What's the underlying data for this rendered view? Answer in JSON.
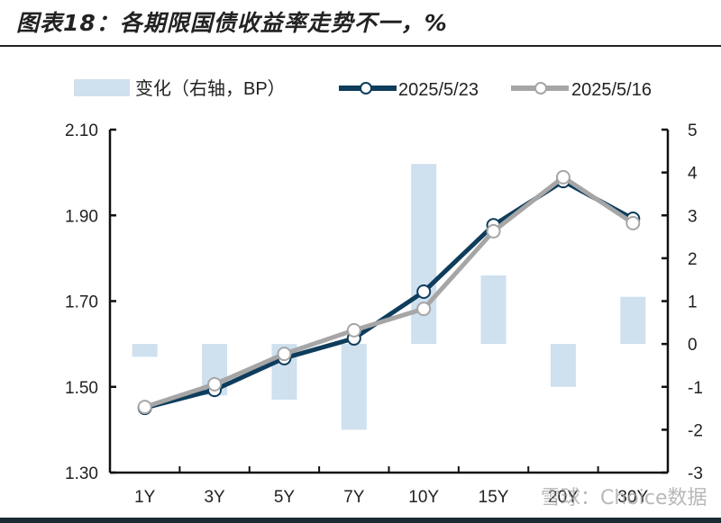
{
  "title": "图表18：各期限国债收益率走势不一，%",
  "legend": [
    {
      "label": "变化（右轴，BP）",
      "type": "bar",
      "color": "#cfe0ef"
    },
    {
      "label": "2025/5/23",
      "type": "line",
      "color": "#0f3d5c"
    },
    {
      "label": "2025/5/16",
      "type": "line",
      "color": "#a6a6a6"
    }
  ],
  "watermark": "雪球：Choice数据",
  "chart_data": {
    "type": "bar+line",
    "title": "图表18：各期限国债收益率走势不一，%",
    "categories": [
      "1Y",
      "3Y",
      "5Y",
      "7Y",
      "10Y",
      "15Y",
      "20Y",
      "30Y"
    ],
    "series": [
      {
        "name": "变化（右轴，BP）",
        "type": "bar",
        "axis": "right",
        "values": [
          -0.3,
          -1.2,
          -1.3,
          -2.0,
          4.2,
          1.6,
          -1.0,
          1.1
        ]
      },
      {
        "name": "2025/5/23",
        "type": "line",
        "axis": "left",
        "values": [
          1.451,
          1.493,
          1.567,
          1.613,
          1.722,
          1.877,
          1.98,
          1.892
        ]
      },
      {
        "name": "2025/5/16",
        "type": "line",
        "axis": "left",
        "values": [
          1.453,
          1.506,
          1.577,
          1.632,
          1.682,
          1.863,
          1.989,
          1.882
        ]
      }
    ],
    "left_axis": {
      "ylim": [
        1.3,
        2.1
      ],
      "ticks": [
        "2.10",
        "1.90",
        "1.70",
        "1.50",
        "1.30"
      ]
    },
    "right_axis": {
      "ylim": [
        -3,
        5
      ],
      "ticks": [
        "5",
        "4",
        "3",
        "2",
        "1",
        "0",
        "-1",
        "-2",
        "-3"
      ]
    },
    "xlabel": "",
    "ylabel": "",
    "grid": false,
    "legend_position": "top"
  }
}
